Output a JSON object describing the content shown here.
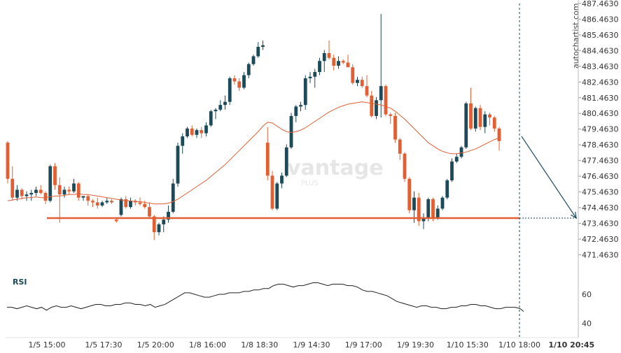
{
  "watermark": {
    "brand": "vantage",
    "sub": "PLUS",
    "site": "autochartist.com"
  },
  "colors": {
    "up": "#1c4a59",
    "down": "#e15f33",
    "ma": "#e15f33",
    "support": "#e15f33",
    "rsi": "#222222",
    "axis_text": "#333333",
    "watermark": "#e6e6e6"
  },
  "chart_data": [
    {
      "type": "candlestick",
      "title": "",
      "ylim": [
        470.46,
        487.46
      ],
      "y_ticks": [
        "487.4630",
        "486.4630",
        "485.4630",
        "484.4630",
        "483.4630",
        "482.4630",
        "481.4630",
        "480.4630",
        "479.4630",
        "478.4630",
        "477.4630",
        "476.4630",
        "475.4630",
        "474.4630",
        "473.4630",
        "472.4630",
        "471.4630"
      ],
      "x_ticks": [
        "1/5 15:00",
        "1/5 17:30",
        "1/5 20:00",
        "1/8 16:00",
        "1/8 18:30",
        "1/9 14:30",
        "1/9 17:00",
        "1/9 19:30",
        "1/10 15:30",
        "1/10 18:00",
        "1/10 20:45"
      ],
      "x_tick_index": [
        8,
        20,
        31,
        42,
        53,
        64,
        75,
        86,
        97,
        108,
        119
      ],
      "candles": [
        [
          478.6,
          478.7,
          476.0,
          476.3
        ],
        [
          476.3,
          477.1,
          474.9,
          475.1
        ],
        [
          475.1,
          475.9,
          474.9,
          475.6
        ],
        [
          475.6,
          475.7,
          475.0,
          475.2
        ],
        [
          475.2,
          475.5,
          474.9,
          475.3
        ],
        [
          475.3,
          475.6,
          474.9,
          475.4
        ],
        [
          475.4,
          475.8,
          475.2,
          475.6
        ],
        [
          475.6,
          475.9,
          475.3,
          475.4
        ],
        [
          475.4,
          475.5,
          474.7,
          474.9
        ],
        [
          474.9,
          477.2,
          474.8,
          477.1
        ],
        [
          477.1,
          477.3,
          475.6,
          475.9
        ],
        [
          475.9,
          476.4,
          473.5,
          475.3
        ],
        [
          475.3,
          475.8,
          475.1,
          475.6
        ],
        [
          475.6,
          475.8,
          475.3,
          475.5
        ],
        [
          475.5,
          476.3,
          475.4,
          476.0
        ],
        [
          476.0,
          476.1,
          474.9,
          475.1
        ],
        [
          475.1,
          475.2,
          474.9,
          475.2
        ],
        [
          475.2,
          475.3,
          474.6,
          474.9
        ],
        [
          474.9,
          475.0,
          474.5,
          474.8
        ],
        [
          474.8,
          475.1,
          474.4,
          474.6
        ],
        [
          474.6,
          474.9,
          474.5,
          474.8
        ],
        [
          474.8,
          475.1,
          474.7,
          474.9
        ],
        [
          474.9,
          475.0,
          474.7,
          474.8
        ],
        [
          473.7,
          473.8,
          473.5,
          473.6
        ],
        [
          474.0,
          475.1,
          473.9,
          475.0
        ],
        [
          475.0,
          475.2,
          474.4,
          474.5
        ],
        [
          474.5,
          475.1,
          474.4,
          474.9
        ],
        [
          474.9,
          475.0,
          474.6,
          474.8
        ],
        [
          474.8,
          475.1,
          474.6,
          474.7
        ],
        [
          474.7,
          474.9,
          474.4,
          474.5
        ],
        [
          474.5,
          474.8,
          473.8,
          473.9
        ],
        [
          473.9,
          474.0,
          472.4,
          472.9
        ],
        [
          472.9,
          473.5,
          472.7,
          473.4
        ],
        [
          473.4,
          473.9,
          472.9,
          473.7
        ],
        [
          473.7,
          474.6,
          473.5,
          474.2
        ],
        [
          474.2,
          476.3,
          474.1,
          476.0
        ],
        [
          476.0,
          478.6,
          475.8,
          478.4
        ],
        [
          478.4,
          479.2,
          477.9,
          479.0
        ],
        [
          479.0,
          479.6,
          478.9,
          479.5
        ],
        [
          479.5,
          479.7,
          479.0,
          479.1
        ],
        [
          479.1,
          479.5,
          478.9,
          479.4
        ],
        [
          479.4,
          479.6,
          478.9,
          479.2
        ],
        [
          479.2,
          479.9,
          479.0,
          479.7
        ],
        [
          479.7,
          480.7,
          479.6,
          480.6
        ],
        [
          480.6,
          480.8,
          480.1,
          480.7
        ],
        [
          480.7,
          481.3,
          480.6,
          481.0
        ],
        [
          481.0,
          481.6,
          480.7,
          481.2
        ],
        [
          481.2,
          482.8,
          481.0,
          482.7
        ],
        [
          482.7,
          482.9,
          482.3,
          482.5
        ],
        [
          482.5,
          482.7,
          481.9,
          482.1
        ],
        [
          482.1,
          483.1,
          482.0,
          482.9
        ],
        [
          482.9,
          483.7,
          482.7,
          483.6
        ],
        [
          483.6,
          484.2,
          483.5,
          484.1
        ],
        [
          484.1,
          485.0,
          484.0,
          484.7
        ],
        [
          484.7,
          485.1,
          484.5,
          484.8
        ],
        [
          478.6,
          479.6,
          476.2,
          476.5
        ],
        [
          476.5,
          476.8,
          474.3,
          474.4
        ],
        [
          474.4,
          476.1,
          474.3,
          476.0
        ],
        [
          476.0,
          476.7,
          475.7,
          476.5
        ],
        [
          476.5,
          478.5,
          476.4,
          478.3
        ],
        [
          478.3,
          480.5,
          478.2,
          480.3
        ],
        [
          480.3,
          481.0,
          479.9,
          480.9
        ],
        [
          480.9,
          481.2,
          480.6,
          481.0
        ],
        [
          481.0,
          482.9,
          480.7,
          482.7
        ],
        [
          482.7,
          483.1,
          482.4,
          482.8
        ],
        [
          482.8,
          483.3,
          482.1,
          483.1
        ],
        [
          483.1,
          484.0,
          482.9,
          483.8
        ],
        [
          483.8,
          484.5,
          483.1,
          484.3
        ],
        [
          484.3,
          485.1,
          483.9,
          484.0
        ],
        [
          484.0,
          484.2,
          483.2,
          483.5
        ],
        [
          483.5,
          484.1,
          483.3,
          483.8
        ],
        [
          483.8,
          483.9,
          483.6,
          483.7
        ],
        [
          483.7,
          484.2,
          483.5,
          483.4
        ],
        [
          483.4,
          483.6,
          482.3,
          482.4
        ],
        [
          482.4,
          482.8,
          482.2,
          482.6
        ],
        [
          482.6,
          482.8,
          482.1,
          482.2
        ],
        [
          482.2,
          482.9,
          481.5,
          481.6
        ],
        [
          481.6,
          481.9,
          480.2,
          480.3
        ],
        [
          480.3,
          481.5,
          480.1,
          481.3
        ],
        [
          481.3,
          486.8,
          480.2,
          482.2
        ],
        [
          482.2,
          482.3,
          480.3,
          480.4
        ],
        [
          480.4,
          480.5,
          479.8,
          480.3
        ],
        [
          480.3,
          480.5,
          478.6,
          478.8
        ],
        [
          478.8,
          478.9,
          477.5,
          477.9
        ],
        [
          477.9,
          478.0,
          476.1,
          476.3
        ],
        [
          476.3,
          476.4,
          474.1,
          474.3
        ],
        [
          474.3,
          475.5,
          473.5,
          475.1
        ],
        [
          475.1,
          475.4,
          473.3,
          473.6
        ],
        [
          473.6,
          474.1,
          473.1,
          473.8
        ],
        [
          473.8,
          475.1,
          473.6,
          475.0
        ],
        [
          475.0,
          475.1,
          473.6,
          473.8
        ],
        [
          473.8,
          474.6,
          473.7,
          474.4
        ],
        [
          474.4,
          475.2,
          474.3,
          475.1
        ],
        [
          475.1,
          476.3,
          475.0,
          476.2
        ],
        [
          476.2,
          477.6,
          476.1,
          477.4
        ],
        [
          477.4,
          477.9,
          477.3,
          477.7
        ],
        [
          477.7,
          478.4,
          477.6,
          478.3
        ],
        [
          478.3,
          481.2,
          478.2,
          481.1
        ],
        [
          481.1,
          482.1,
          479.4,
          479.5
        ],
        [
          479.5,
          480.9,
          479.3,
          480.8
        ],
        [
          480.8,
          481.0,
          479.4,
          479.6
        ],
        [
          479.6,
          480.6,
          479.2,
          480.4
        ],
        [
          480.4,
          480.5,
          479.7,
          480.2
        ],
        [
          480.2,
          480.3,
          479.3,
          479.5
        ],
        [
          479.5,
          479.6,
          478.1,
          478.7
        ]
      ],
      "ma": [
        474.9,
        474.95,
        475.0,
        475.05,
        475.1,
        475.1,
        475.15,
        475.1,
        475.1,
        475.15,
        475.2,
        475.2,
        475.25,
        475.3,
        475.3,
        475.35,
        475.3,
        475.3,
        475.25,
        475.2,
        475.15,
        475.1,
        475.05,
        475.0,
        474.95,
        474.9,
        474.9,
        474.85,
        474.85,
        474.8,
        474.75,
        474.7,
        474.7,
        474.7,
        474.75,
        474.85,
        475.0,
        475.2,
        475.4,
        475.6,
        475.8,
        476.0,
        476.2,
        476.45,
        476.7,
        476.95,
        477.2,
        477.5,
        477.8,
        478.1,
        478.4,
        478.7,
        479.0,
        479.3,
        479.65,
        479.9,
        479.85,
        479.65,
        479.45,
        479.3,
        479.25,
        479.3,
        479.4,
        479.55,
        479.75,
        479.95,
        480.15,
        480.35,
        480.55,
        480.7,
        480.85,
        480.95,
        481.05,
        481.1,
        481.15,
        481.2,
        481.15,
        481.1,
        481.05,
        481.0,
        480.9,
        480.8,
        480.6,
        480.35,
        480.1,
        479.8,
        479.5,
        479.2,
        478.9,
        478.6,
        478.4,
        478.2,
        478.05,
        477.95,
        477.9,
        477.9,
        477.95,
        478.0,
        478.1,
        478.2,
        478.35,
        478.5,
        478.65,
        478.8,
        478.9
      ],
      "support_level": 473.8,
      "projection": {
        "from_index": 124,
        "from_value": 479.0,
        "to_value": 473.8
      }
    },
    {
      "type": "line",
      "title": "RSI",
      "ylim": [
        30,
        75
      ],
      "y_ticks": [
        "60",
        "40"
      ],
      "values": [
        51,
        51,
        50,
        51,
        52,
        51,
        50,
        51,
        49,
        51,
        52,
        51,
        51,
        52,
        51,
        50,
        51,
        52,
        53,
        53,
        52,
        52,
        53,
        53,
        54,
        54,
        53,
        53,
        52,
        53,
        51,
        52,
        53,
        55,
        57,
        59,
        61,
        61,
        60,
        59,
        58,
        58,
        59,
        60,
        60,
        61,
        61,
        61,
        62,
        62,
        63,
        63,
        64,
        64,
        66,
        67,
        67,
        66,
        65,
        66,
        66,
        67,
        68,
        68,
        67,
        66,
        67,
        67,
        67,
        66,
        66,
        65,
        63,
        62,
        62,
        61,
        60,
        59,
        57,
        55,
        54,
        53,
        52,
        51,
        52,
        52,
        51,
        51,
        50,
        50,
        51,
        51,
        52,
        52,
        53,
        53,
        52,
        52,
        51,
        50,
        50,
        51,
        51,
        51,
        50
      ]
    }
  ]
}
